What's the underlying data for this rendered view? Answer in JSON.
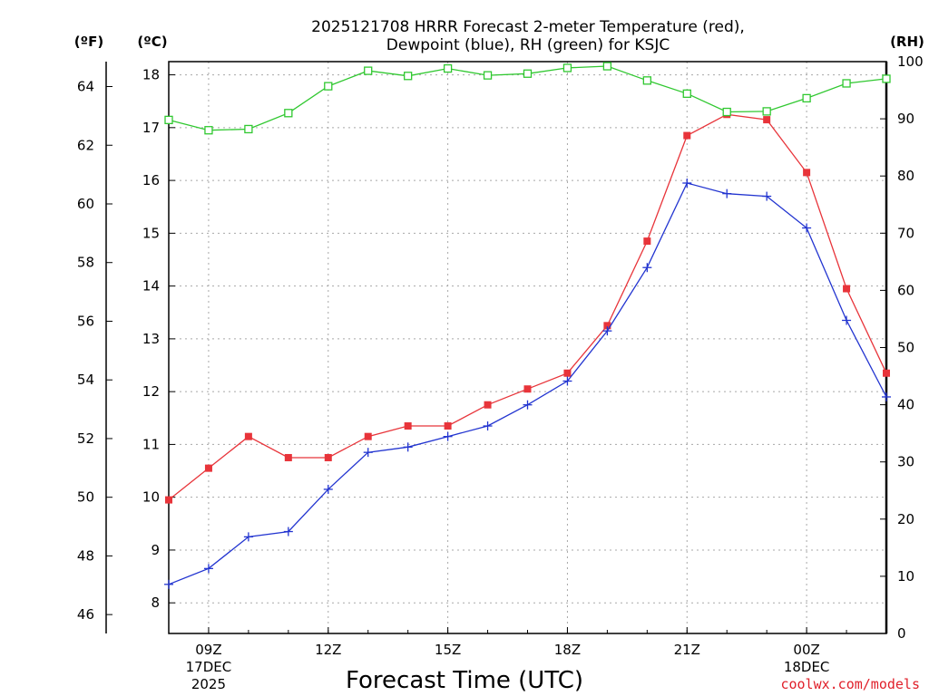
{
  "chart_data": {
    "type": "line",
    "title": [
      "2025121708 HRRR Forecast 2-meter Temperature (red),",
      "Dewpoint (blue), RH (green) for KSJC"
    ],
    "xlabel": "Forecast Time (UTC)",
    "credit": "coolwx.com/models",
    "x_hours": [
      8,
      9,
      10,
      11,
      12,
      13,
      14,
      15,
      16,
      17,
      18,
      19,
      20,
      21,
      22,
      23,
      24,
      25,
      26
    ],
    "x_ticks": [
      {
        "hour": 9,
        "lines": [
          "09Z",
          "17DEC",
          "2025"
        ]
      },
      {
        "hour": 12,
        "lines": [
          "12Z"
        ]
      },
      {
        "hour": 15,
        "lines": [
          "15Z"
        ]
      },
      {
        "hour": 18,
        "lines": [
          "18Z"
        ]
      },
      {
        "hour": 21,
        "lines": [
          "21Z"
        ]
      },
      {
        "hour": 24,
        "lines": [
          "00Z",
          "18DEC"
        ]
      }
    ],
    "axes": {
      "celsius": {
        "label": "(ºC)",
        "range": [
          7.42,
          18.25
        ],
        "ticks": [
          8,
          9,
          10,
          11,
          12,
          13,
          14,
          15,
          16,
          17,
          18
        ]
      },
      "fahrenheit": {
        "label": "(ºF)",
        "ticks": [
          46,
          48,
          50,
          52,
          54,
          56,
          58,
          60,
          62,
          64
        ]
      },
      "rh": {
        "label": "(RH)",
        "range": [
          0,
          100
        ],
        "ticks": [
          0,
          10,
          20,
          30,
          40,
          50,
          60,
          70,
          80,
          90,
          100
        ]
      },
      "x_range": [
        8,
        26
      ]
    },
    "series": [
      {
        "name": "Temperature",
        "unit": "C",
        "color": "#e8343a",
        "marker": "filled-square",
        "values": [
          9.95,
          10.55,
          11.15,
          10.75,
          10.75,
          11.15,
          11.35,
          11.35,
          11.75,
          12.05,
          12.35,
          13.25,
          14.85,
          16.85,
          17.25,
          17.15,
          16.15,
          13.95,
          12.35
        ]
      },
      {
        "name": "Dewpoint",
        "unit": "C",
        "color": "#2234d0",
        "marker": "plus",
        "values": [
          8.35,
          8.65,
          9.25,
          9.35,
          10.15,
          10.85,
          10.95,
          11.15,
          11.35,
          11.75,
          12.2,
          13.15,
          14.35,
          15.95,
          15.75,
          15.7,
          15.1,
          13.35,
          11.9
        ]
      },
      {
        "name": "RH",
        "unit": "%",
        "color": "#30c830",
        "marker": "open-square",
        "values": [
          89.8,
          88.0,
          88.2,
          91.0,
          95.7,
          98.4,
          97.5,
          98.8,
          97.6,
          97.9,
          98.9,
          99.2,
          96.7,
          94.4,
          91.2,
          91.3,
          93.6,
          96.2,
          97.0
        ]
      }
    ]
  }
}
